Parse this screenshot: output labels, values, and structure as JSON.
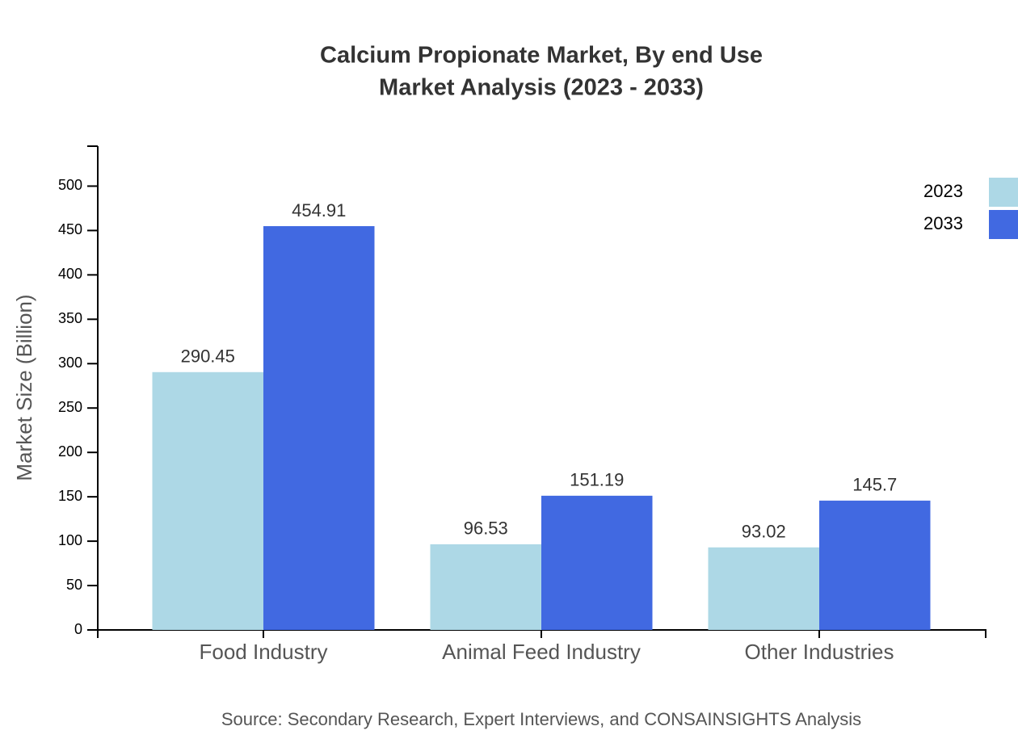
{
  "chart_data": {
    "type": "bar",
    "title": "Calcium Propionate Market, By end Use",
    "subtitle": "Market Analysis (2023 - 2033)",
    "y_label": "Market Size (Billion)",
    "source": "Source: Secondary Research, Expert Interviews, and CONSAINSIGHTS Analysis",
    "categories": [
      "Food Industry",
      "Animal Feed Industry",
      "Other Industries"
    ],
    "series": [
      {
        "name": "2023",
        "color": "#add8e6",
        "values": [
          290.45,
          96.53,
          93.02
        ]
      },
      {
        "name": "2033",
        "color": "#4169e1",
        "values": [
          454.91,
          151.19,
          145.7
        ]
      }
    ],
    "ylim": [
      0,
      545
    ],
    "yticks": [
      0,
      50,
      100,
      150,
      200,
      250,
      300,
      350,
      400,
      450,
      500
    ],
    "legend": "top-right"
  }
}
